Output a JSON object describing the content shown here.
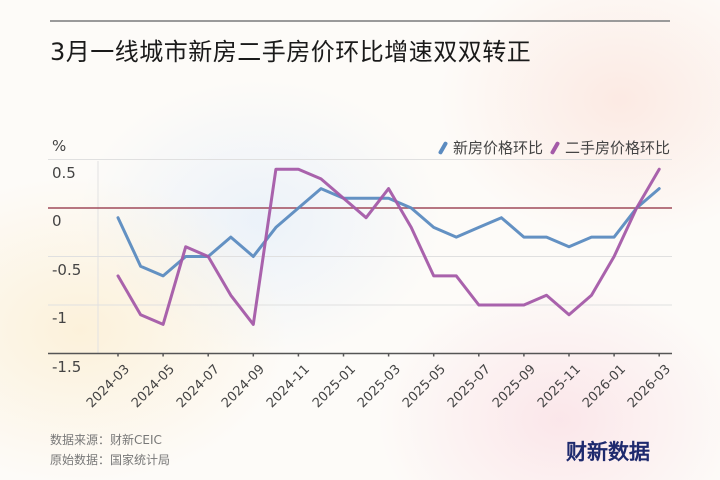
{
  "header": {
    "title": "3月一线城市新房二手房价环比增速双双转正"
  },
  "legend": {
    "items": [
      {
        "label": "新房价格环比",
        "color": "#5b8bc0"
      },
      {
        "label": "二手房价格环比",
        "color": "#a45aa8"
      }
    ]
  },
  "axis": {
    "unit": "%",
    "y_ticks": [
      "0.5",
      "0",
      "-0.5",
      "-1",
      "-1.5"
    ],
    "x_ticks": [
      "2024-03",
      "2024-05",
      "2024-07",
      "2024-09",
      "2024-11",
      "2025-01",
      "2025-03",
      "2025-05",
      "2025-07",
      "2025-09",
      "2025-11",
      "2026-01",
      "2026-03"
    ]
  },
  "footer": {
    "source": "数据来源：财新CEIC",
    "origin": "原始数据：国家统计局",
    "logo": "财新数据"
  },
  "colors": {
    "new_home": "#5b8bc0",
    "second_hand": "#a45aa8",
    "zero_line": "#a04a5a",
    "logo": "#1e2a6e"
  },
  "chart_data": {
    "type": "line",
    "title": "3月一线城市新房二手房价环比增速双双转正",
    "xlabel": "",
    "ylabel": "%",
    "ylim": [
      -1.5,
      0.5
    ],
    "grid": true,
    "legend_position": "top-right",
    "x": [
      "2024-03",
      "2024-04",
      "2024-05",
      "2024-06",
      "2024-07",
      "2024-08",
      "2024-09",
      "2024-10",
      "2024-11",
      "2024-12",
      "2025-01",
      "2025-02",
      "2025-03",
      "2025-04",
      "2025-05",
      "2025-06",
      "2025-07",
      "2025-08",
      "2025-09",
      "2025-10",
      "2025-11",
      "2025-12",
      "2026-01",
      "2026-02",
      "2026-03"
    ],
    "series": [
      {
        "name": "新房价格环比",
        "values": [
          -0.1,
          -0.6,
          -0.7,
          -0.5,
          -0.5,
          -0.3,
          -0.5,
          -0.2,
          0.0,
          0.2,
          0.1,
          0.1,
          0.1,
          0.0,
          -0.2,
          -0.3,
          -0.2,
          -0.1,
          -0.3,
          -0.3,
          -0.4,
          -0.3,
          -0.3,
          0.0,
          0.2
        ]
      },
      {
        "name": "二手房价格环比",
        "values": [
          -0.7,
          -1.1,
          -1.2,
          -0.4,
          -0.5,
          -0.9,
          -1.2,
          0.4,
          0.4,
          0.3,
          0.1,
          -0.1,
          0.2,
          -0.2,
          -0.7,
          -0.7,
          -1.0,
          -1.0,
          -1.0,
          -0.9,
          -1.1,
          -0.9,
          -0.5,
          0.0,
          0.4
        ]
      }
    ],
    "reference_line": {
      "y": 0,
      "color": "#a04a5a"
    }
  }
}
